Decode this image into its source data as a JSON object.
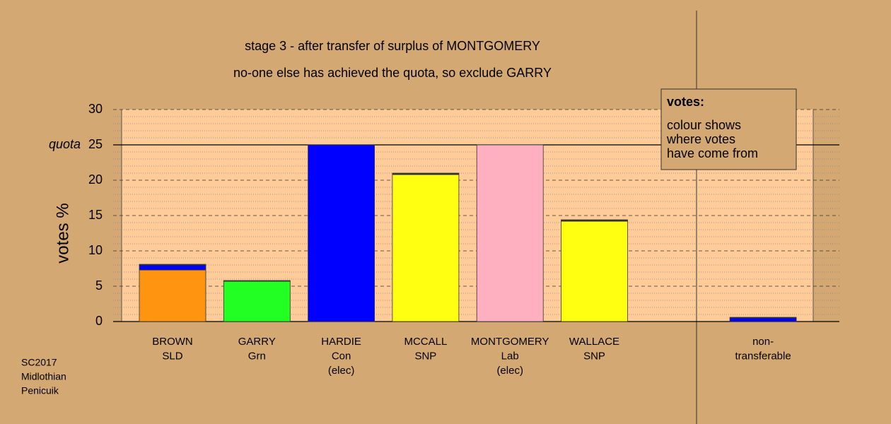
{
  "chart_data": {
    "type": "bar",
    "title": "stage 3 - after transfer of surplus of MONTGOMERY",
    "subtitle": "no-one else has achieved the quota, so exclude GARRY",
    "y_label": "votes %",
    "categories": [
      [
        "BROWN",
        "SLD"
      ],
      [
        "GARRY",
        "Grn"
      ],
      [
        "HARDIE",
        "Con",
        "(elec)"
      ],
      [
        "MCCALL",
        "SNP"
      ],
      [
        "MONTGOMERY",
        "Lab",
        "(elec)"
      ],
      [
        "WALLACE",
        "SNP"
      ],
      null,
      [
        "non-",
        "transferable"
      ]
    ],
    "series": [
      {
        "colors": [
          "#ff9411",
          "#22ff22",
          "#0000ff",
          "#ffff11",
          "#ffb0c0",
          "#ffff11",
          null,
          null
        ],
        "values": [
          7.3,
          5.7,
          25,
          20.8,
          25,
          14.2,
          null,
          null
        ]
      },
      {
        "color": "#0000ff",
        "values": [
          0.7,
          0,
          0,
          0,
          0,
          0,
          null,
          0.5
        ]
      },
      {
        "color": "#333333",
        "values": [
          0.1,
          0.1,
          0,
          0.2,
          0,
          0.2,
          null,
          0.1
        ]
      }
    ],
    "ylim": [
      0,
      30
    ],
    "yticks": [
      0,
      5,
      10,
      15,
      20,
      25,
      30
    ],
    "minor_yticks": [
      1,
      2,
      3,
      4,
      6,
      7,
      8,
      9,
      11,
      12,
      13,
      14,
      16,
      17,
      18,
      19,
      21,
      22,
      23,
      24,
      26,
      27,
      28,
      29
    ],
    "grid": true,
    "quota": 25,
    "quota_label": "quota",
    "legend": {
      "title": "votes:",
      "lines": [
        "colour shows",
        "where votes",
        "have come from"
      ]
    },
    "footnote": [
      "SC2017",
      "Midlothian",
      "Penicuik"
    ]
  }
}
